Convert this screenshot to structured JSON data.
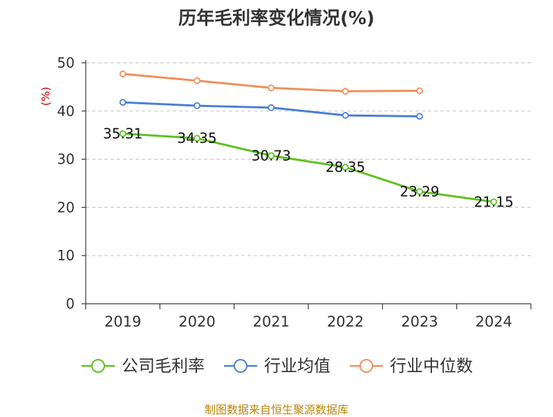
{
  "chart_data": {
    "type": "line",
    "title": "历年毛利率变化情况(%)",
    "unit_label": "(%)",
    "categories": [
      "2019",
      "2020",
      "2021",
      "2022",
      "2023",
      "2024"
    ],
    "ylim": [
      0,
      50
    ],
    "yticks": [
      0,
      10,
      20,
      30,
      40,
      50
    ],
    "grid": true,
    "legend_position": "bottom",
    "series": [
      {
        "name": "公司毛利率",
        "color": "#5ec11f",
        "values": [
          35.31,
          34.35,
          30.73,
          28.35,
          23.29,
          21.15
        ],
        "labels": [
          "35.31",
          "34.35",
          "30.73",
          "28.35",
          "23.29",
          "21.15"
        ]
      },
      {
        "name": "行业均值",
        "color": "#4a7fd6",
        "values": [
          41.8,
          41.1,
          40.7,
          39.1,
          38.9,
          null
        ]
      },
      {
        "name": "行业中位数",
        "color": "#f28e5a",
        "values": [
          47.7,
          46.3,
          44.8,
          44.1,
          44.2,
          null
        ]
      }
    ]
  },
  "source": "制图数据来自恒生聚源数据库"
}
